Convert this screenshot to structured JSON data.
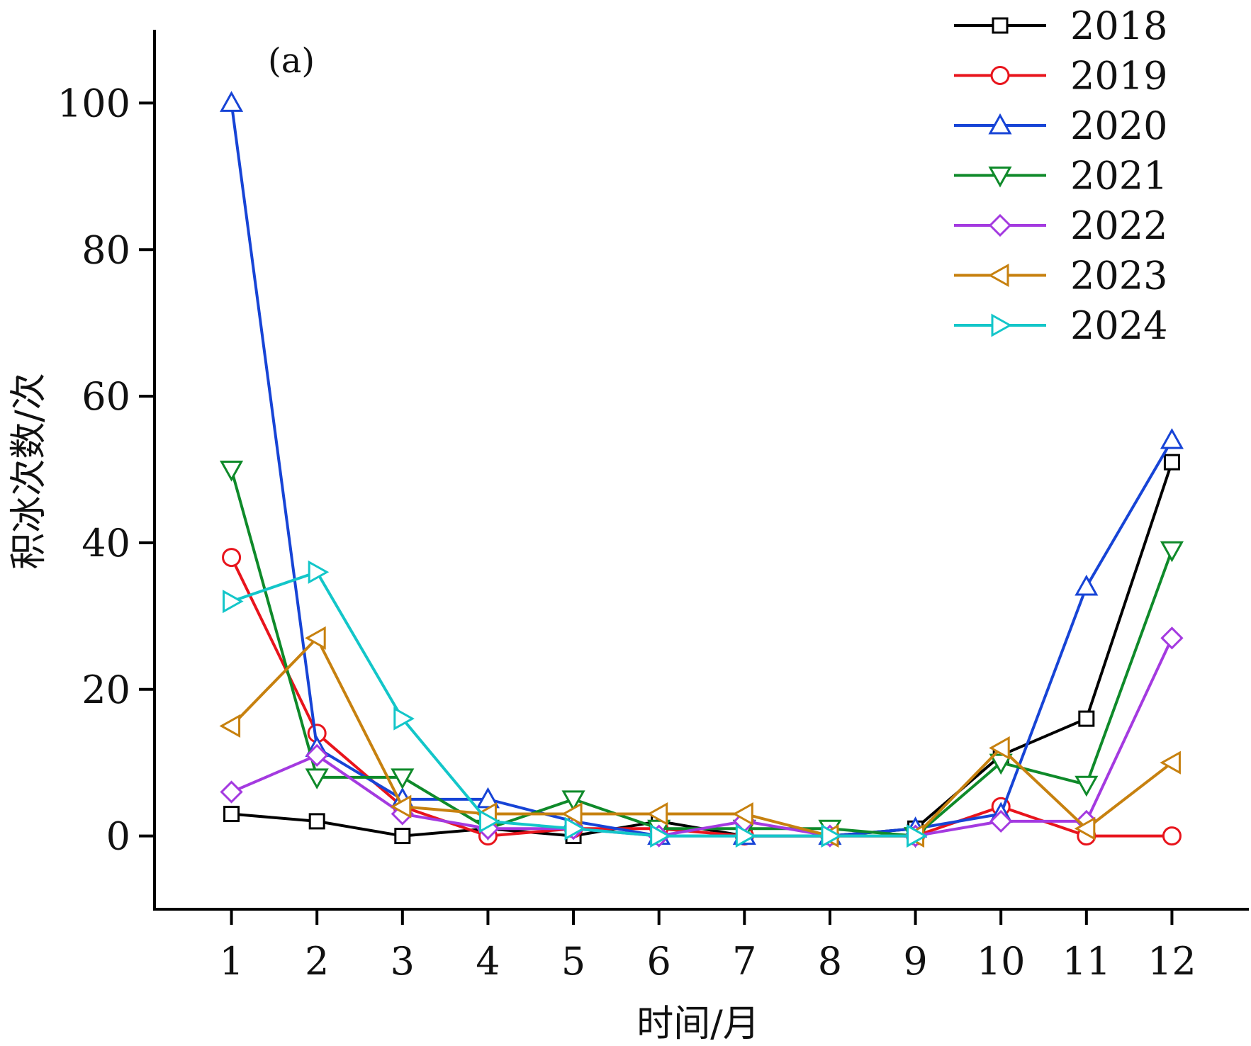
{
  "chart_data": {
    "type": "line",
    "panel_label": "(a)",
    "xlabel": "时间/月",
    "ylabel": "积冰次数/次",
    "x": [
      1,
      2,
      3,
      4,
      5,
      6,
      7,
      8,
      9,
      10,
      11,
      12
    ],
    "xlim": [
      0.1,
      12.9
    ],
    "ylim": [
      -10,
      110
    ],
    "yticks": [
      0,
      20,
      40,
      60,
      80,
      100
    ],
    "grid": false,
    "legend_position": "top-right",
    "series": [
      {
        "name": "2018",
        "color": "#000000",
        "marker": "square",
        "values": [
          3,
          2,
          0,
          1,
          0,
          2,
          0,
          0,
          1,
          11,
          16,
          51
        ]
      },
      {
        "name": "2019",
        "color": "#e8141c",
        "marker": "circle",
        "values": [
          38,
          14,
          4,
          0,
          1,
          1,
          0,
          0,
          0,
          4,
          0,
          0
        ]
      },
      {
        "name": "2020",
        "color": "#1744d6",
        "marker": "triangle-up",
        "values": [
          100,
          12,
          5,
          5,
          2,
          0,
          0,
          0,
          1,
          3,
          34,
          54
        ]
      },
      {
        "name": "2021",
        "color": "#0f8a2a",
        "marker": "triangle-down",
        "values": [
          50,
          8,
          8,
          1,
          5,
          1,
          1,
          1,
          0,
          10,
          7,
          39
        ]
      },
      {
        "name": "2022",
        "color": "#a43ae0",
        "marker": "diamond",
        "values": [
          6,
          11,
          3,
          1,
          1,
          0,
          2,
          0,
          0,
          2,
          2,
          27
        ]
      },
      {
        "name": "2023",
        "color": "#c7810f",
        "marker": "triangle-left",
        "values": [
          15,
          27,
          4,
          3,
          3,
          3,
          3,
          0,
          0,
          12,
          1,
          10
        ]
      },
      {
        "name": "2024",
        "color": "#13c6c9",
        "marker": "triangle-right",
        "values": [
          32,
          36,
          16,
          2,
          1,
          0,
          0,
          0,
          0,
          null,
          null,
          null
        ]
      }
    ]
  }
}
